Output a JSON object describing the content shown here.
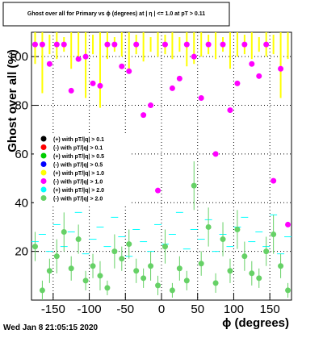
{
  "chart_data": {
    "type": "scatter",
    "title": "Ghost over all for Primary vs ϕ (degrees) at | η | <= 1.0 at pT > 0.11",
    "x_label": "ϕ (degrees)",
    "y_label": "Ghost over all (%)",
    "footer": "Wed Jan  8 21:05:15 2020",
    "xlim": [
      -180,
      180
    ],
    "ylim": [
      0,
      110
    ],
    "xticks": [
      -150,
      -100,
      -50,
      0,
      50,
      100,
      150
    ],
    "yticks": [
      20,
      40,
      60,
      80,
      100
    ],
    "grid": true,
    "legend": "center-left",
    "x": [
      -175,
      -165,
      -155,
      -145,
      -135,
      -125,
      -115,
      -105,
      -95,
      -85,
      -75,
      -65,
      -55,
      -45,
      -35,
      -25,
      -15,
      -5,
      5,
      15,
      25,
      35,
      45,
      55,
      65,
      75,
      85,
      95,
      105,
      115,
      125,
      135,
      145,
      155,
      165,
      175
    ],
    "series": [
      {
        "name": "(+) with pT/|q| > 0.1",
        "color": "#000000",
        "style": "point",
        "values": []
      },
      {
        "name": "(-) with pT/|q| > 0.1",
        "color": "#ff0000",
        "style": "point",
        "values": []
      },
      {
        "name": "(+) with pT/|q| > 0.5",
        "color": "#00cc00",
        "style": "point",
        "values": []
      },
      {
        "name": "(-) with pT/|q| > 0.5",
        "color": "#0000ff",
        "style": "point",
        "values": []
      },
      {
        "name": "(+) with pT/|q| > 1.0",
        "color": "#ffff00",
        "style": "errorbar",
        "values": [
          105,
          105,
          105,
          105,
          105,
          105,
          105,
          105,
          105,
          105,
          105,
          105,
          105,
          105,
          105,
          105,
          105,
          105,
          105,
          105,
          105,
          105,
          105,
          105,
          105,
          105,
          105,
          105,
          105,
          105,
          105,
          105,
          105,
          105,
          105,
          105
        ],
        "errors": [
          8,
          20,
          4,
          6,
          3,
          10,
          5,
          22,
          4,
          26,
          6,
          3,
          5,
          12,
          4,
          7,
          3,
          5,
          4,
          6,
          3,
          9,
          8,
          5,
          4,
          6,
          3,
          10,
          5,
          4,
          6,
          3,
          5,
          4,
          22,
          6
        ]
      },
      {
        "name": "(-) with pT/|q| > 1.0",
        "color": "#ff00ff",
        "style": "point",
        "values": [
          105,
          105,
          97,
          105,
          105,
          86,
          99,
          100,
          89,
          88,
          105,
          105,
          96,
          94,
          105,
          76,
          80,
          45,
          105,
          87,
          91,
          105,
          100,
          83,
          105,
          60,
          105,
          78,
          89,
          105,
          97,
          92,
          105,
          49,
          95,
          31
        ]
      },
      {
        "name": "(+) with pT/|q| > 2.0",
        "color": "#00ffff",
        "style": "step",
        "values": [
          24,
          27,
          20,
          31,
          22,
          28,
          36,
          19,
          25,
          30,
          22,
          34,
          26,
          18,
          29,
          24,
          20,
          31,
          23,
          27,
          36,
          21,
          29,
          25,
          33,
          20,
          27,
          22,
          30,
          34,
          24,
          28,
          22,
          35,
          19,
          26
        ]
      },
      {
        "name": "(-) with pT/|q| > 2.0",
        "color": "#66d166",
        "style": "point",
        "values": [
          22,
          4,
          12,
          18,
          28,
          13,
          25,
          8,
          14,
          10,
          5,
          20,
          17,
          23,
          12,
          9,
          14,
          6,
          22,
          4,
          13,
          8,
          47,
          15,
          30,
          7,
          25,
          12,
          29,
          18,
          11,
          9,
          20,
          27,
          14,
          4
        ],
        "errors": [
          6,
          4,
          5,
          7,
          8,
          5,
          6,
          4,
          5,
          6,
          3,
          7,
          5,
          6,
          5,
          4,
          6,
          4,
          7,
          3,
          5,
          4,
          10,
          5,
          8,
          4,
          7,
          5,
          8,
          6,
          5,
          4,
          6,
          8,
          5,
          3
        ]
      }
    ]
  }
}
